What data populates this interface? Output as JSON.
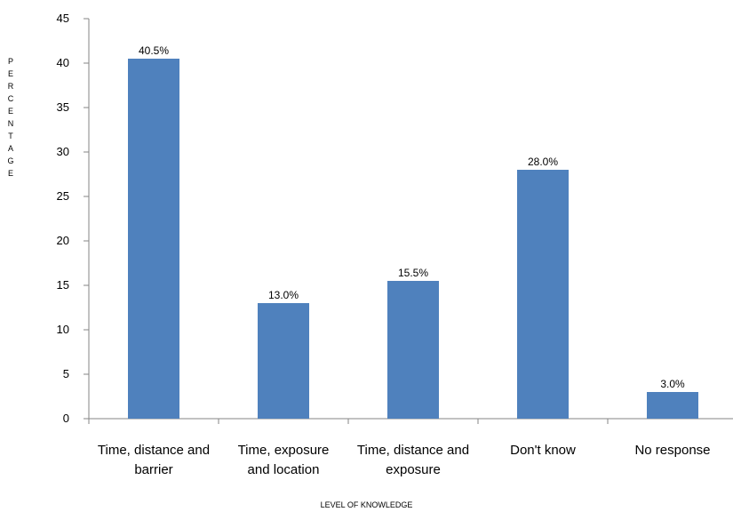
{
  "chart_data": {
    "type": "bar",
    "categories": [
      [
        "Time, distance and",
        "barrier"
      ],
      [
        "Time, exposure",
        "and location"
      ],
      [
        "Time, distance and",
        "exposure"
      ],
      [
        "Don't know"
      ],
      [
        "No response"
      ]
    ],
    "values": [
      40.5,
      13.0,
      15.5,
      28.0,
      3.0
    ],
    "data_labels": [
      "40.5%",
      "13.0%",
      "15.5%",
      "28.0%",
      "3.0%"
    ],
    "xlabel": "LEVEL OF KNOWLEDGE",
    "ylabel": "PERCENTAGE",
    "ylim": [
      0,
      45
    ],
    "yticks": [
      0,
      5,
      10,
      15,
      20,
      25,
      30,
      35,
      40,
      45
    ],
    "bar_color": "#4f81bd",
    "grid": false,
    "legend": "none"
  }
}
